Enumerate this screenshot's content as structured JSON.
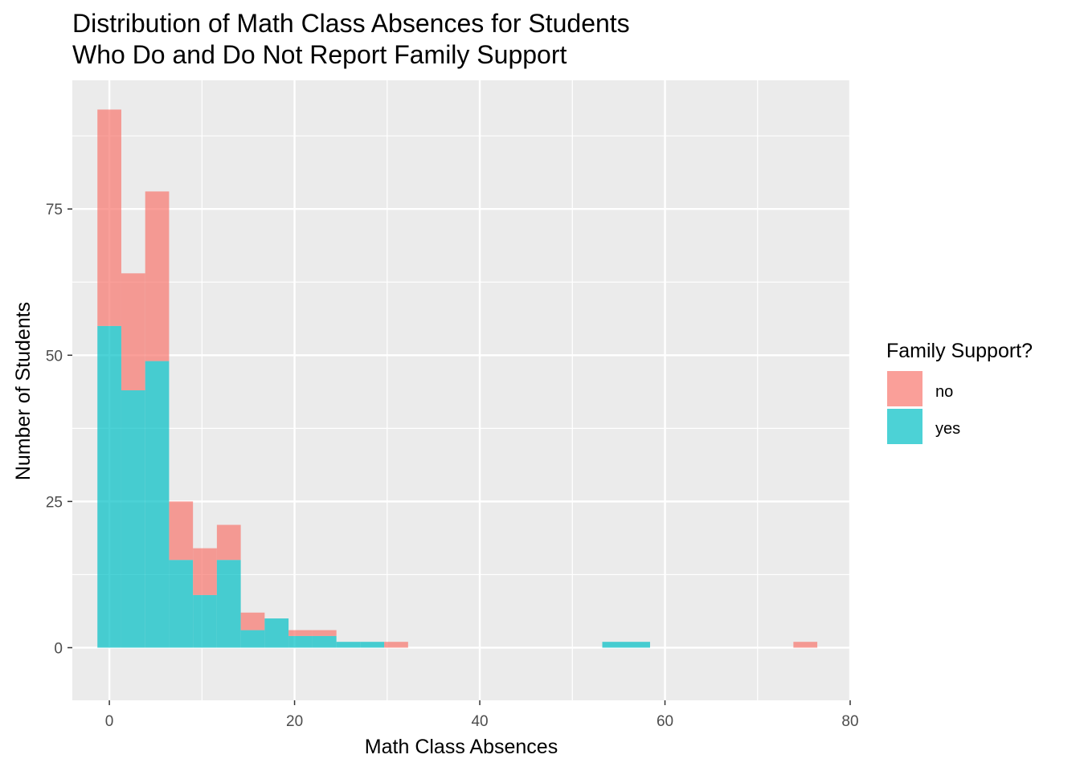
{
  "chart_data": {
    "type": "bar",
    "title": [
      "Distribution of Math Class Absences for Students",
      "Who Do and Do Not Report Family Support"
    ],
    "xlabel": "Math Class Absences",
    "ylabel": "Number of Students",
    "xlim": [
      -4,
      80
    ],
    "ylim": [
      -9,
      97
    ],
    "x_ticks": [
      0,
      20,
      40,
      60,
      80
    ],
    "x_tick_labels": [
      "0",
      "20",
      "40",
      "60",
      "80"
    ],
    "y_ticks": [
      0,
      25,
      50,
      75
    ],
    "y_tick_labels": [
      "0",
      "25",
      "50",
      "75"
    ],
    "x_minor_ticks": [
      10,
      30,
      50,
      70
    ],
    "y_minor_ticks": [
      12.5,
      37.5,
      62.5,
      87.5
    ],
    "grid": true,
    "panel_color": "#ebebeb",
    "stacked": true,
    "bins": {
      "start": [
        -1.29,
        1.29,
        3.87,
        6.45,
        9.03,
        11.61,
        14.19,
        16.77,
        19.35,
        21.94,
        24.52,
        27.1,
        29.68,
        53.23,
        73.87
      ],
      "end": [
        1.29,
        3.87,
        6.45,
        9.03,
        11.61,
        14.19,
        16.77,
        19.35,
        21.94,
        24.52,
        27.1,
        29.68,
        32.26,
        58.39,
        76.45
      ]
    },
    "legend": {
      "title": "Family Support?",
      "position": "right"
    },
    "series": [
      {
        "name": "yes",
        "color": "#00BFC4",
        "values": [
          55,
          44,
          49,
          15,
          9,
          15,
          3,
          5,
          2,
          2,
          1,
          1,
          0,
          1,
          0
        ]
      },
      {
        "name": "no",
        "color": "#F8766D",
        "values": [
          37,
          20,
          29,
          10,
          8,
          6,
          3,
          0,
          1,
          1,
          0,
          0,
          1,
          0,
          1
        ]
      }
    ]
  }
}
